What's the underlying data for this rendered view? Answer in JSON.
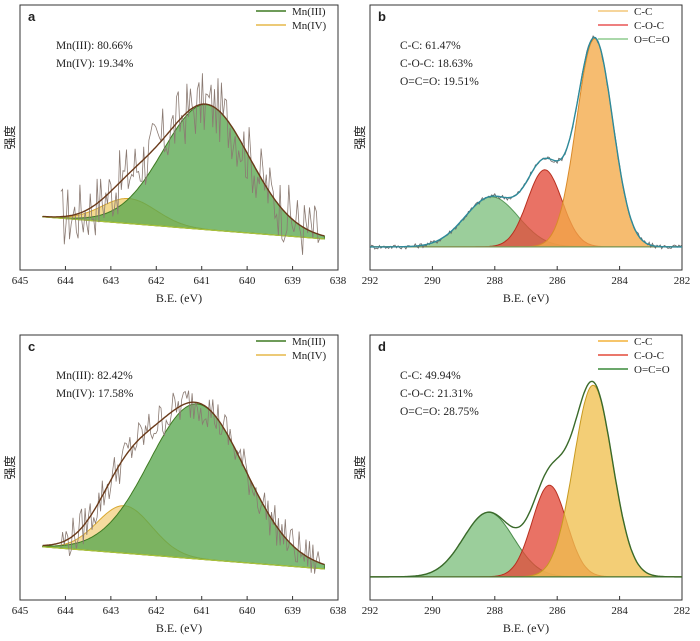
{
  "chart_data": [
    {
      "panel": "a",
      "type": "area",
      "xlabel": "B.E. (eV)",
      "ylabel": "强度",
      "xlim": [
        645,
        638
      ],
      "xticks": [
        645,
        644,
        643,
        642,
        641,
        640,
        639,
        638
      ],
      "annotations": [
        "Mn(III): 80.66%",
        "Mn(IV): 19.34%"
      ],
      "legend": [
        {
          "label": "Mn(III)",
          "color": "#3f7a22"
        },
        {
          "label": "Mn(IV)",
          "color": "#e6b84a"
        }
      ],
      "series": [
        {
          "name": "Mn(III)",
          "type": "gaussian",
          "center": 640.9,
          "amplitude": 0.5,
          "width": 0.95,
          "fill": "#5aa850",
          "stroke": "#3f7a22"
        },
        {
          "name": "Mn(IV)",
          "type": "gaussian",
          "center": 642.6,
          "amplitude": 0.1,
          "width": 0.6,
          "fill": "#f0cf70",
          "stroke": "#d9a830"
        }
      ],
      "raw_noise": 0.13,
      "baseline_color": "#a8c23a",
      "envelope_color": "#6a3a1a",
      "raw_color": "#8a7a72"
    },
    {
      "panel": "b",
      "type": "area",
      "xlabel": "B.E. (eV)",
      "ylabel": "强度",
      "xlim": [
        292,
        282
      ],
      "xticks": [
        292,
        290,
        288,
        286,
        284,
        282
      ],
      "annotations": [
        "C-C: 61.47%",
        "C-O-C: 18.63%",
        "O=C=O: 19.51%"
      ],
      "legend": [
        {
          "label": "C-C",
          "color": "#f3c77a"
        },
        {
          "label": "C-O-C",
          "color": "#e85555"
        },
        {
          "label": "O=C=O",
          "color": "#8ecc8e"
        }
      ],
      "series": [
        {
          "name": "C-C",
          "type": "gaussian",
          "center": 284.8,
          "amplitude": 1.0,
          "width": 0.58,
          "fill": "#f3a948",
          "stroke": "#d98a2a"
        },
        {
          "name": "C-O-C",
          "type": "gaussian",
          "center": 286.4,
          "amplitude": 0.37,
          "width": 0.55,
          "fill": "#e34a3a",
          "stroke": "#b83020"
        },
        {
          "name": "O=C=O",
          "type": "gaussian",
          "center": 288.1,
          "amplitude": 0.24,
          "width": 0.85,
          "fill": "#7fc07f",
          "stroke": "#5a9a5a"
        }
      ],
      "raw_noise": 0.012,
      "baseline_color": "#7a9a5a",
      "envelope_color": "#2e8a9a",
      "raw_color": "#666666"
    },
    {
      "panel": "c",
      "type": "area",
      "xlabel": "B.E. (eV)",
      "ylabel": "强度",
      "xlim": [
        645,
        638
      ],
      "xticks": [
        645,
        644,
        643,
        642,
        641,
        640,
        639,
        638
      ],
      "annotations": [
        "Mn(III): 82.42%",
        "Mn(IV): 17.58%"
      ],
      "legend": [
        {
          "label": "Mn(III)",
          "color": "#3f7a22"
        },
        {
          "label": "Mn(IV)",
          "color": "#e6b84a"
        }
      ],
      "series": [
        {
          "name": "Mn(III)",
          "type": "gaussian",
          "center": 641.1,
          "amplitude": 0.62,
          "width": 1.05,
          "fill": "#5aa850",
          "stroke": "#3f7a22"
        },
        {
          "name": "Mn(IV)",
          "type": "gaussian",
          "center": 642.7,
          "amplitude": 0.19,
          "width": 0.6,
          "fill": "#f3d184",
          "stroke": "#d9a830"
        }
      ],
      "raw_noise": 0.08,
      "baseline_color": "#a8c23a",
      "envelope_color": "#6a3a1a",
      "raw_color": "#8a7a72"
    },
    {
      "panel": "d",
      "type": "area",
      "xlabel": "B.E. (eV)",
      "ylabel": "强度",
      "xlim": [
        292,
        282
      ],
      "xticks": [
        292,
        290,
        288,
        286,
        284,
        282
      ],
      "annotations": [
        "C-C: 49.94%",
        "C-O-C: 21.31%",
        "O=C=O: 28.75%"
      ],
      "legend": [
        {
          "label": "C-C",
          "color": "#f3b23a"
        },
        {
          "label": "C-O-C",
          "color": "#e34a3a"
        },
        {
          "label": "O=C=O",
          "color": "#3a8a3a"
        }
      ],
      "series": [
        {
          "name": "C-C",
          "type": "gaussian",
          "center": 284.85,
          "amplitude": 0.92,
          "width": 0.62,
          "fill": "#f0c050",
          "stroke": "#c89a20"
        },
        {
          "name": "C-O-C",
          "type": "gaussian",
          "center": 286.25,
          "amplitude": 0.44,
          "width": 0.55,
          "fill": "#e34a3a",
          "stroke": "#b83020"
        },
        {
          "name": "O=C=O",
          "type": "gaussian",
          "center": 288.2,
          "amplitude": 0.31,
          "width": 0.8,
          "fill": "#7fc07f",
          "stroke": "#4a8a4a"
        }
      ],
      "raw_noise": 0.0,
      "baseline_color": "#4a7a3a",
      "envelope_color": "#3a6a2a",
      "raw_color": "#444444"
    }
  ]
}
